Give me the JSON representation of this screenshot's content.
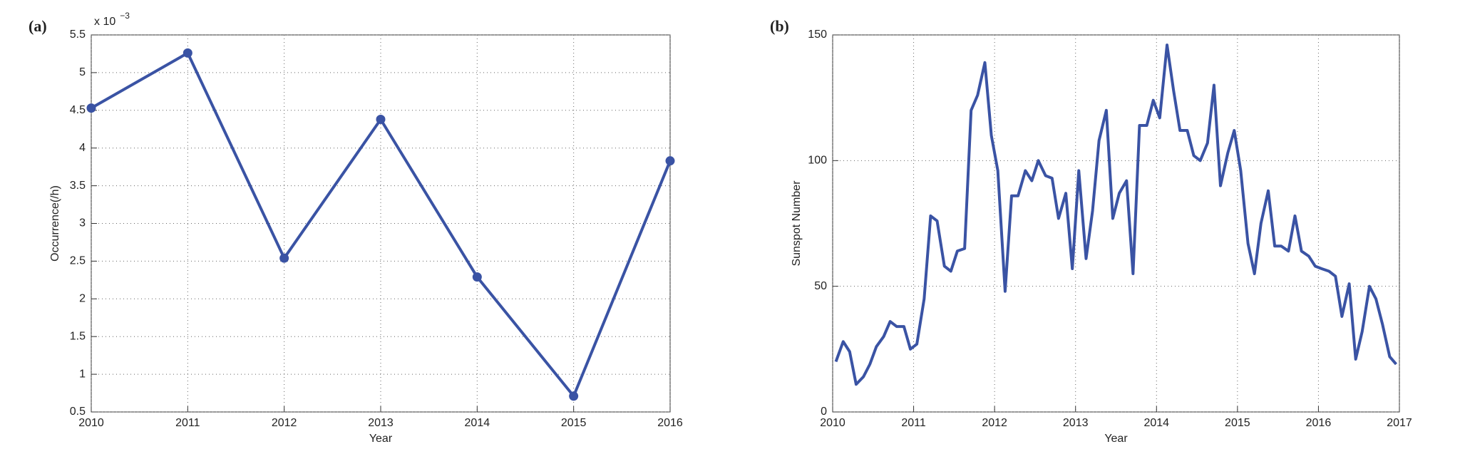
{
  "chart_data": [
    {
      "type": "line",
      "panel_label": "(a)",
      "xlabel": "Year",
      "ylabel": "Occurrence(/h)",
      "axis_multiplier": {
        "base": "x 10",
        "power": "−3"
      },
      "x": [
        2010,
        2011,
        2012,
        2013,
        2014,
        2015,
        2016
      ],
      "series": [
        {
          "color": "#3a53a4",
          "markers": true,
          "values": [
            4.53,
            5.26,
            2.54,
            4.38,
            2.29,
            0.71,
            3.83
          ]
        }
      ],
      "xlim": [
        2010,
        2016
      ],
      "xticks": [
        2010,
        2011,
        2012,
        2013,
        2014,
        2015,
        2016
      ],
      "ylim": [
        0.5,
        5.5
      ],
      "yticks": [
        0.5,
        1,
        1.5,
        2,
        2.5,
        3,
        3.5,
        4,
        4.5,
        5,
        5.5
      ],
      "grid": true
    },
    {
      "type": "line",
      "panel_label": "(b)",
      "xlabel": "Year",
      "ylabel": "Sunspot Number",
      "x": [
        2010.04,
        2010.13,
        2010.21,
        2010.29,
        2010.38,
        2010.46,
        2010.54,
        2010.63,
        2010.71,
        2010.79,
        2010.88,
        2010.96,
        2011.04,
        2011.13,
        2011.21,
        2011.29,
        2011.38,
        2011.46,
        2011.54,
        2011.63,
        2011.71,
        2011.79,
        2011.88,
        2011.96,
        2012.04,
        2012.13,
        2012.21,
        2012.29,
        2012.38,
        2012.46,
        2012.54,
        2012.63,
        2012.71,
        2012.79,
        2012.88,
        2012.96,
        2013.04,
        2013.13,
        2013.21,
        2013.29,
        2013.38,
        2013.46,
        2013.54,
        2013.63,
        2013.71,
        2013.79,
        2013.88,
        2013.96,
        2014.04,
        2014.13,
        2014.21,
        2014.29,
        2014.38,
        2014.46,
        2014.54,
        2014.63,
        2014.71,
        2014.79,
        2014.88,
        2014.96,
        2015.04,
        2015.13,
        2015.21,
        2015.29,
        2015.38,
        2015.46,
        2015.54,
        2015.63,
        2015.71,
        2015.79,
        2015.88,
        2015.96,
        2016.04,
        2016.13,
        2016.21,
        2016.29,
        2016.38,
        2016.46,
        2016.54,
        2016.63,
        2016.71,
        2016.79,
        2016.88,
        2016.96
      ],
      "series": [
        {
          "color": "#3a53a4",
          "markers": false,
          "values": [
            20,
            28,
            24,
            11,
            14,
            19,
            26,
            30,
            36,
            34,
            34,
            25,
            27,
            45,
            78,
            76,
            58,
            56,
            64,
            65,
            120,
            126,
            139,
            110,
            96,
            48,
            86,
            86,
            96,
            92,
            100,
            94,
            93,
            77,
            87,
            57,
            96,
            61,
            80,
            108,
            120,
            77,
            87,
            92,
            55,
            114,
            114,
            124,
            117,
            146,
            128,
            112,
            112,
            102,
            100,
            107,
            130,
            90,
            103,
            112,
            96,
            67,
            55,
            75,
            88,
            66,
            66,
            64,
            78,
            64,
            62,
            58,
            57,
            56,
            54,
            38,
            51,
            21,
            32,
            50,
            45,
            35,
            22,
            19
          ]
        }
      ],
      "xlim": [
        2010,
        2017
      ],
      "xticks": [
        2010,
        2011,
        2012,
        2013,
        2014,
        2015,
        2016,
        2017
      ],
      "ylim": [
        0,
        150
      ],
      "yticks": [
        0,
        50,
        100,
        150
      ],
      "grid": true
    }
  ]
}
